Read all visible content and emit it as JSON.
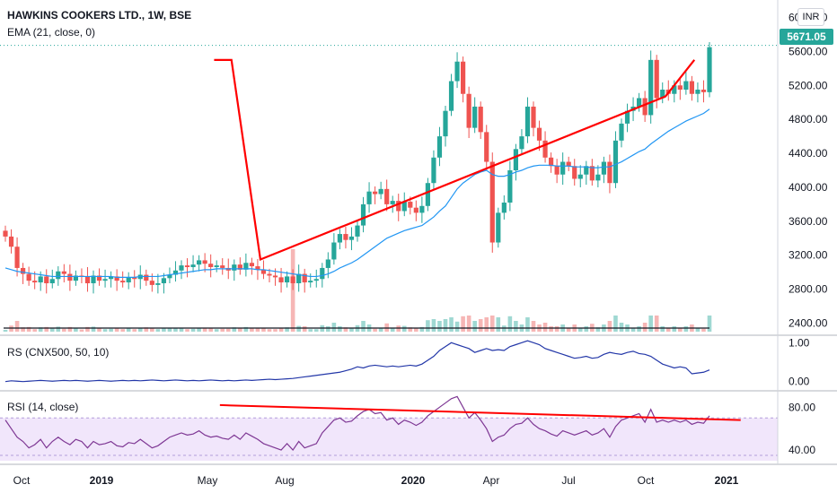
{
  "header": {
    "title": "HAWKINS COOKERS LTD., 1W, BSE",
    "ema_label": "EMA (21, close, 0)",
    "currency": "INR",
    "last_price": "5671.05"
  },
  "rs_pane": {
    "label": "RS (CNX500, 50, 10)",
    "ticks": [
      "1.00",
      "0.00"
    ]
  },
  "rsi_pane": {
    "label": "RSI (14, close)",
    "ticks": [
      "80.00",
      "40.00"
    ]
  },
  "colors": {
    "up": "#26a69a",
    "down": "#ef5350",
    "ema": "#2196f3",
    "rs": "#2337a8",
    "rsi": "#7e3794",
    "trend": "#ff0000"
  },
  "chart_data": [
    {
      "type": "candlestick",
      "title": "HAWKINS COOKERS LTD., 1W, BSE",
      "overlay": "EMA (21, close, 0)",
      "y_ticks": [
        "6000.00",
        "5600.00",
        "5200.00",
        "4800.00",
        "4400.00",
        "4000.00",
        "3600.00",
        "3200.00",
        "2800.00",
        "2400.00"
      ],
      "ylim": [
        2300,
        6100
      ],
      "x_ticks": [
        "Oct",
        "2019",
        "May",
        "Aug",
        "2020",
        "Apr",
        "Jul",
        "Oct",
        "2021"
      ],
      "last_price": 5671.05,
      "close_series": [
        3420,
        3300,
        3050,
        2980,
        2900,
        2880,
        2950,
        2870,
        2920,
        3010,
        2980,
        2900,
        2960,
        2950,
        2870,
        2960,
        2900,
        2920,
        2950,
        2900,
        2880,
        2940,
        2920,
        2970,
        2900,
        2850,
        2870,
        2930,
        2970,
        3020,
        3080,
        3060,
        3090,
        3140,
        3100,
        3060,
        3080,
        3050,
        3020,
        3090,
        3030,
        3110,
        3070,
        3030,
        2980,
        2960,
        2940,
        2880,
        2950,
        2870,
        2980,
        2880,
        2900,
        2920,
        3050,
        3150,
        3350,
        3450,
        3380,
        3420,
        3550,
        3800,
        3950,
        3920,
        3980,
        3800,
        3840,
        3720,
        3830,
        3760,
        3700,
        3780,
        4050,
        4350,
        4600,
        4900,
        5250,
        5480,
        5100,
        4700,
        4950,
        4650,
        4300,
        3350,
        3700,
        3820,
        4200,
        4450,
        4600,
        4950,
        4700,
        4550,
        4350,
        4250,
        4150,
        4300,
        4250,
        4100,
        4150,
        4250,
        4080,
        4150,
        4300,
        4050,
        4550,
        4750,
        4900,
        4950,
        5050,
        4850,
        5500,
        5050,
        5150,
        5100,
        5200,
        5150,
        5250,
        5100,
        5150,
        5120,
        5650
      ],
      "ema_series": [
        3050,
        3030,
        3010,
        3000,
        2990,
        2980,
        2970,
        2960,
        2950,
        2950,
        2950,
        2950,
        2950,
        2950,
        2950,
        2950,
        2950,
        2950,
        2950,
        2940,
        2940,
        2940,
        2940,
        2950,
        2950,
        2950,
        2950,
        2960,
        2970,
        2980,
        2990,
        3000,
        3010,
        3020,
        3030,
        3030,
        3040,
        3040,
        3040,
        3040,
        3040,
        3040,
        3040,
        3030,
        3030,
        3020,
        3010,
        3000,
        2990,
        2980,
        2970,
        2960,
        2950,
        2950,
        2960,
        2980,
        3010,
        3050,
        3080,
        3110,
        3150,
        3200,
        3250,
        3300,
        3350,
        3400,
        3430,
        3460,
        3490,
        3510,
        3530,
        3550,
        3600,
        3650,
        3720,
        3780,
        3880,
        3980,
        4050,
        4100,
        4150,
        4180,
        4200,
        4150,
        4130,
        4130,
        4150,
        4180,
        4200,
        4230,
        4250,
        4260,
        4260,
        4260,
        4250,
        4250,
        4250,
        4240,
        4240,
        4240,
        4230,
        4230,
        4240,
        4240,
        4270,
        4300,
        4340,
        4380,
        4420,
        4450,
        4510,
        4560,
        4610,
        4660,
        4700,
        4740,
        4780,
        4810,
        4840,
        4870,
        4920
      ],
      "trendlines": [
        [
          [
            0.0925,
            5500
          ],
          [
            0.1,
            5500
          ],
          [
            0.1125,
            3150
          ],
          [
            0.2875,
            5070
          ],
          [
            0.3,
            5500
          ]
        ]
      ]
    },
    {
      "type": "line",
      "title": "RS (CNX500, 50, 10)",
      "y_ticks": [
        "1.00",
        "0.00"
      ],
      "values": [
        0.0,
        0.02,
        0.01,
        0.0,
        0.01,
        0.02,
        0.03,
        0.02,
        0.01,
        0.02,
        0.03,
        0.02,
        0.03,
        0.02,
        0.01,
        0.02,
        0.03,
        0.02,
        0.01,
        0.02,
        0.03,
        0.02,
        0.03,
        0.02,
        0.03,
        0.04,
        0.03,
        0.02,
        0.03,
        0.04,
        0.03,
        0.02,
        0.03,
        0.02,
        0.03,
        0.04,
        0.03,
        0.02,
        0.03,
        0.02,
        0.03,
        0.04,
        0.03,
        0.04,
        0.05,
        0.06,
        0.05,
        0.06,
        0.07,
        0.08,
        0.1,
        0.12,
        0.14,
        0.16,
        0.18,
        0.2,
        0.22,
        0.24,
        0.28,
        0.32,
        0.38,
        0.35,
        0.4,
        0.42,
        0.4,
        0.38,
        0.4,
        0.38,
        0.4,
        0.42,
        0.4,
        0.45,
        0.55,
        0.65,
        0.8,
        0.9,
        1.0,
        0.95,
        0.9,
        0.85,
        0.75,
        0.8,
        0.85,
        0.8,
        0.82,
        0.8,
        0.9,
        0.95,
        1.0,
        1.05,
        1.0,
        0.95,
        0.85,
        0.8,
        0.75,
        0.7,
        0.65,
        0.6,
        0.62,
        0.65,
        0.6,
        0.62,
        0.7,
        0.75,
        0.72,
        0.7,
        0.75,
        0.78,
        0.72,
        0.7,
        0.65,
        0.55,
        0.45,
        0.4,
        0.35,
        0.38,
        0.35,
        0.2,
        0.22,
        0.24,
        0.3
      ]
    },
    {
      "type": "line",
      "title": "RSI (14, close)",
      "y_ticks": [
        "80.00",
        "40.00"
      ],
      "values": [
        68,
        60,
        52,
        48,
        42,
        45,
        50,
        42,
        48,
        52,
        48,
        45,
        50,
        48,
        42,
        48,
        45,
        46,
        48,
        44,
        43,
        47,
        46,
        50,
        46,
        42,
        44,
        48,
        52,
        54,
        56,
        54,
        55,
        58,
        54,
        52,
        53,
        51,
        50,
        54,
        50,
        56,
        53,
        50,
        46,
        44,
        42,
        40,
        46,
        40,
        48,
        42,
        44,
        46,
        56,
        62,
        68,
        70,
        66,
        67,
        72,
        76,
        78,
        74,
        75,
        68,
        70,
        64,
        68,
        66,
        63,
        66,
        72,
        76,
        80,
        84,
        88,
        90,
        80,
        70,
        75,
        68,
        60,
        48,
        52,
        54,
        60,
        64,
        65,
        70,
        64,
        60,
        58,
        55,
        53,
        58,
        56,
        54,
        56,
        58,
        54,
        56,
        60,
        52,
        62,
        68,
        70,
        72,
        74,
        66,
        78,
        66,
        68,
        66,
        68,
        66,
        68,
        64,
        66,
        65,
        72
      ],
      "trendlines": [
        [
          [
            0.095,
            82
          ],
          [
            0.32,
            68
          ]
        ]
      ]
    }
  ]
}
